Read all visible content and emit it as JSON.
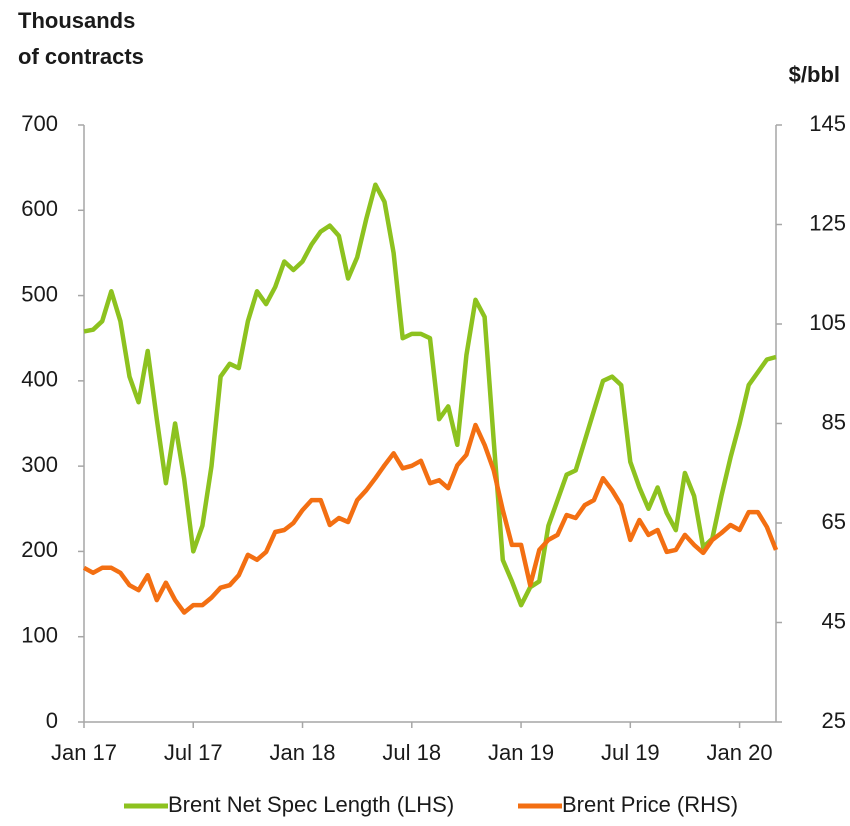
{
  "chart_data": {
    "type": "line",
    "ylabel": [
      "Thousands",
      "of contracts"
    ],
    "y2label": "$/bbl",
    "x": [
      0,
      0.5,
      1,
      1.5,
      2,
      2.5,
      3,
      3.5,
      4,
      4.5,
      5,
      5.5,
      6,
      6.5,
      7,
      7.5,
      8,
      8.5,
      9,
      9.5,
      10,
      10.5,
      11,
      11.5,
      12,
      12.5,
      13,
      13.5,
      14,
      14.5,
      15,
      15.5,
      16,
      16.5,
      17,
      17.5,
      18,
      18.5,
      19,
      19.5,
      20,
      20.5,
      21,
      21.5,
      22,
      22.5,
      23,
      23.5,
      24,
      24.5,
      25,
      25.5,
      26,
      26.5,
      27,
      27.5,
      28,
      28.5,
      29,
      29.5,
      30,
      30.5,
      31,
      31.5,
      32,
      32.5,
      33,
      33.5,
      34,
      34.5,
      35,
      35.5,
      36,
      36.5,
      37,
      37.5,
      38
    ],
    "xlim": [
      0,
      38
    ],
    "xticks": [
      {
        "value": 0,
        "label": "Jan 17"
      },
      {
        "value": 6,
        "label": "Jul 17"
      },
      {
        "value": 12,
        "label": "Jan 18"
      },
      {
        "value": 18,
        "label": "Jul 18"
      },
      {
        "value": 24,
        "label": "Jan 19"
      },
      {
        "value": 30,
        "label": "Jul 19"
      },
      {
        "value": 36,
        "label": "Jan 20"
      }
    ],
    "ylim": [
      0,
      700
    ],
    "yticks": [
      0,
      100,
      200,
      300,
      400,
      500,
      600,
      700
    ],
    "y2lim": [
      25,
      145
    ],
    "y2ticks": [
      25,
      45,
      65,
      85,
      105,
      125,
      145
    ],
    "legend": "bottom",
    "series": [
      {
        "name": "Brent Net Spec Length (LHS)",
        "color": "#8dc21f",
        "axis": "y",
        "values": [
          458,
          460,
          470,
          505,
          470,
          405,
          375,
          435,
          355,
          280,
          350,
          285,
          200,
          230,
          300,
          405,
          420,
          415,
          470,
          505,
          490,
          510,
          540,
          530,
          540,
          560,
          575,
          582,
          570,
          520,
          545,
          590,
          630,
          610,
          550,
          450,
          455,
          455,
          450,
          355,
          370,
          325,
          430,
          495,
          475,
          330,
          190,
          165,
          137,
          158,
          165,
          230,
          260,
          290,
          295,
          330,
          365,
          400,
          405,
          395,
          305,
          275,
          250,
          275,
          245,
          225,
          292,
          265,
          205,
          215,
          265,
          310,
          350,
          395,
          410,
          425,
          428
        ]
      },
      {
        "name": "Brent Price (RHS)",
        "color": "#f36f12",
        "axis": "y2",
        "values": [
          56,
          55,
          56,
          56,
          55,
          52.5,
          51.5,
          54.5,
          49.5,
          53,
          49.5,
          47,
          48.5,
          48.5,
          50,
          52,
          52.5,
          54.5,
          58.6,
          57.6,
          59.2,
          63.2,
          63.6,
          65,
          67.6,
          69.6,
          69.6,
          64.6,
          66,
          65.2,
          69.6,
          71.6,
          74,
          76.6,
          79,
          76,
          76.5,
          77.5,
          73,
          73.6,
          72,
          76.6,
          78.7,
          84.7,
          80.7,
          75.6,
          67.6,
          60.6,
          60.6,
          52.5,
          59.6,
          61.6,
          62.6,
          66.6,
          66,
          68.6,
          69.6,
          74,
          71.6,
          68.6,
          61.6,
          65.6,
          62.6,
          63.6,
          59.2,
          59.6,
          62.6,
          60.6,
          59,
          61.6,
          63,
          64.6,
          63.6,
          67.2,
          67.2,
          64.2,
          59.6
        ]
      }
    ]
  }
}
